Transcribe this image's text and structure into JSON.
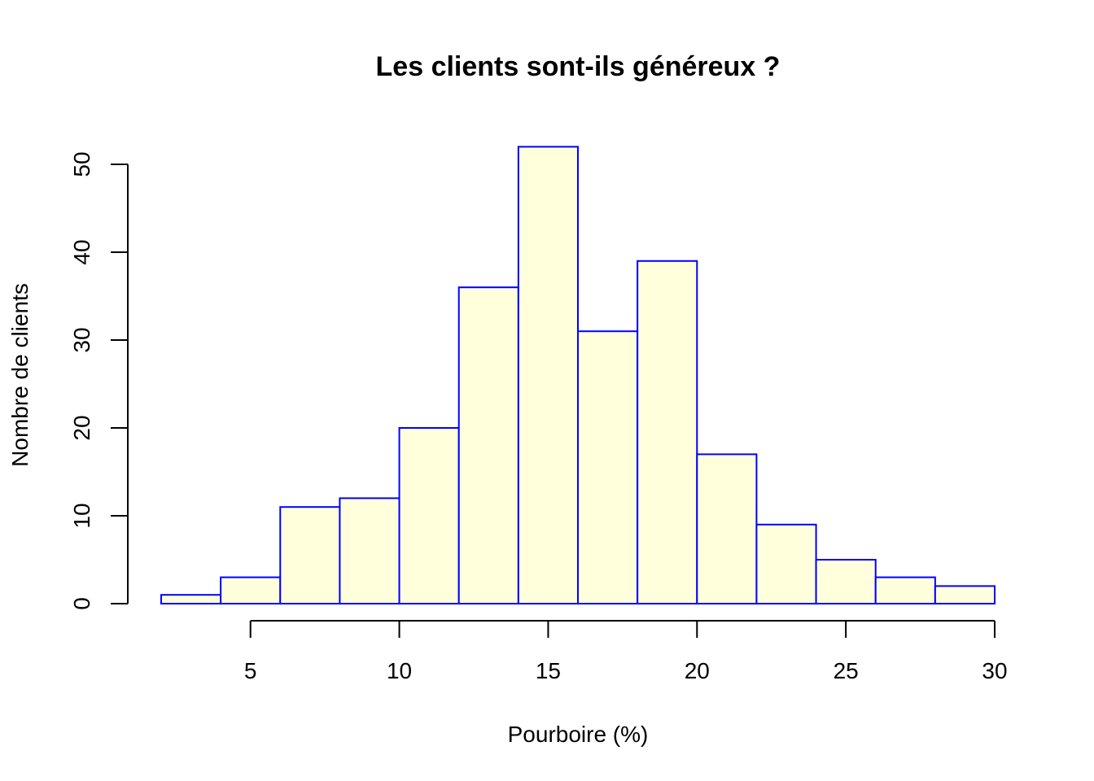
{
  "chart_data": {
    "type": "bar",
    "subtype": "histogram",
    "title": "Les clients sont-ils généreux ?",
    "xlabel": "Pourboire (%)",
    "ylabel": "Nombre de clients",
    "bins": [
      {
        "from": 2,
        "to": 4,
        "count": 1
      },
      {
        "from": 4,
        "to": 6,
        "count": 3
      },
      {
        "from": 6,
        "to": 8,
        "count": 11
      },
      {
        "from": 8,
        "to": 10,
        "count": 12
      },
      {
        "from": 10,
        "to": 12,
        "count": 20
      },
      {
        "from": 12,
        "to": 14,
        "count": 36
      },
      {
        "from": 14,
        "to": 16,
        "count": 52
      },
      {
        "from": 16,
        "to": 18,
        "count": 31
      },
      {
        "from": 18,
        "to": 20,
        "count": 39
      },
      {
        "from": 20,
        "to": 22,
        "count": 17
      },
      {
        "from": 22,
        "to": 24,
        "count": 9
      },
      {
        "from": 24,
        "to": 26,
        "count": 5
      },
      {
        "from": 26,
        "to": 28,
        "count": 3
      },
      {
        "from": 28,
        "to": 30,
        "count": 2
      }
    ],
    "xlim": [
      2,
      30
    ],
    "ylim": [
      0,
      52
    ],
    "x_ticks": [
      5,
      10,
      15,
      20,
      25,
      30
    ],
    "y_ticks": [
      0,
      10,
      20,
      30,
      40,
      50
    ],
    "grid": false,
    "legend": "none",
    "colors": {
      "bar_fill": "#ffffdc",
      "bar_border": "#0000ff",
      "axis": "#000000"
    }
  }
}
